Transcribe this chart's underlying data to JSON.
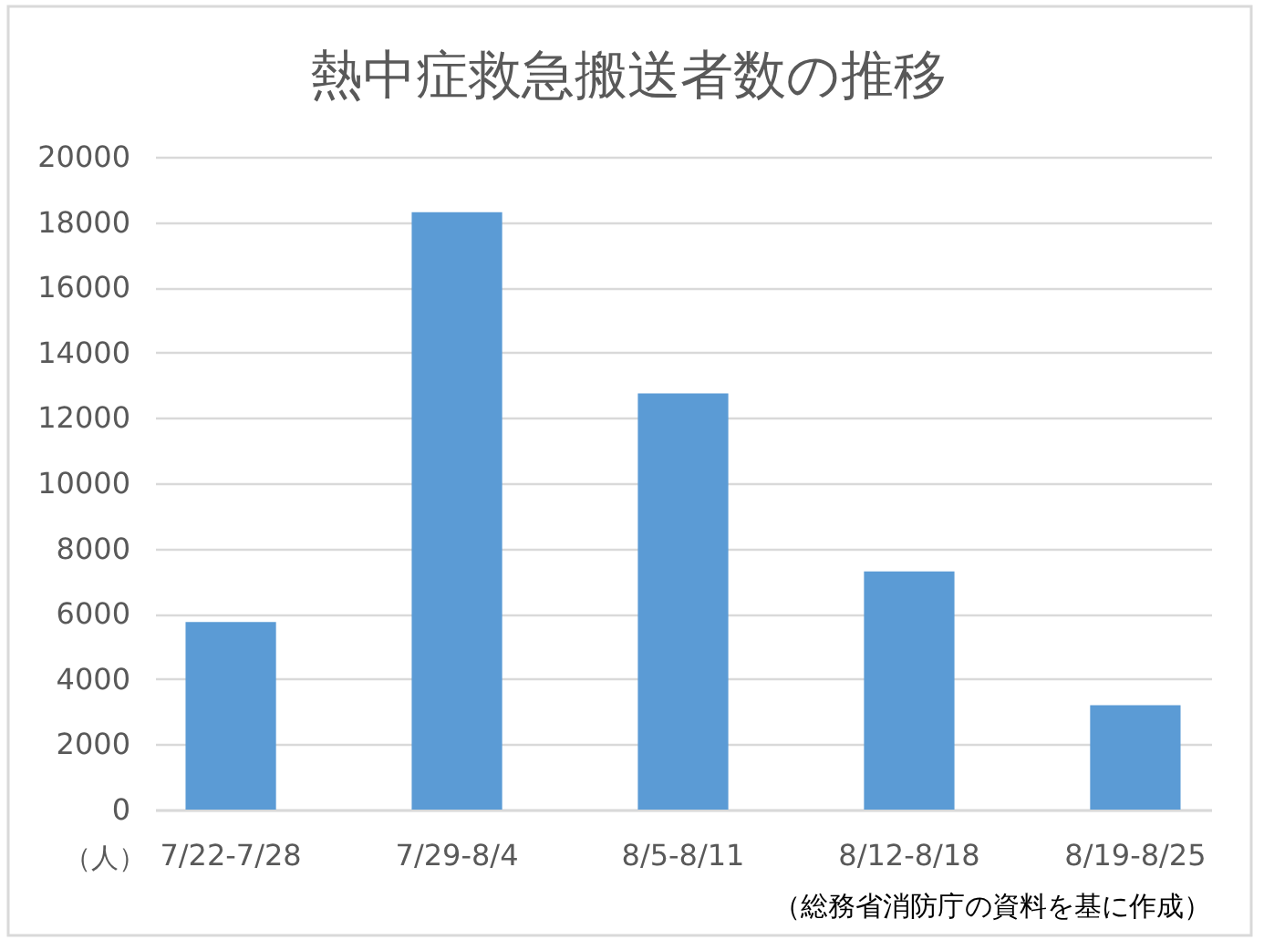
{
  "chart_data": {
    "type": "bar",
    "title": "熱中症救急搬送者数の推移",
    "ylabel": "（人）",
    "categories": [
      "7/22-7/28",
      "7/29-8/4",
      "8/5-8/11",
      "8/12-8/18",
      "8/19-8/25"
    ],
    "values": [
      5750,
      18300,
      12750,
      7300,
      3200
    ],
    "color": "#5b9bd5",
    "ylim": [
      0,
      20000
    ],
    "yticks": [
      0,
      2000,
      4000,
      6000,
      8000,
      10000,
      12000,
      14000,
      16000,
      18000,
      20000
    ],
    "grid": "y",
    "annotations": [
      "（総務省消防庁の資料を基に作成）"
    ]
  }
}
